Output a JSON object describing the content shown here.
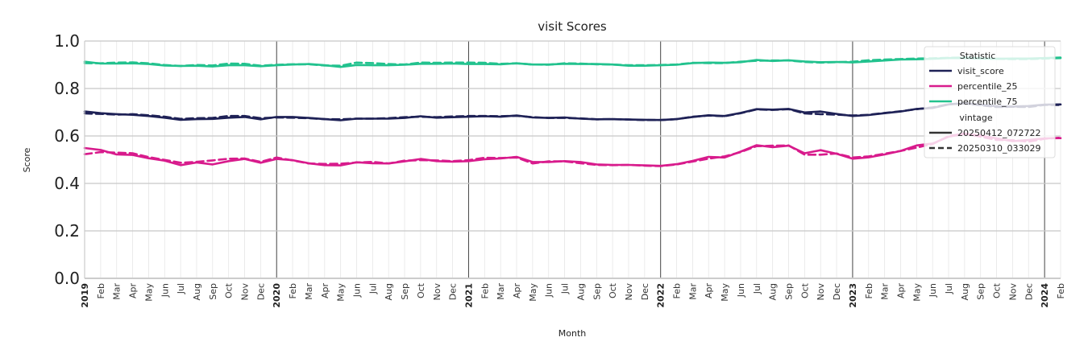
{
  "chart_data": {
    "type": "line",
    "title": "visit Scores",
    "xlabel": "Month",
    "ylabel": "Score",
    "ylim": [
      0,
      1
    ],
    "yticks": [
      "0.0",
      "0.2",
      "0.4",
      "0.6",
      "0.8",
      "1.0"
    ],
    "x_start": "2019-01",
    "x_end": "2024-02",
    "year_labels": [
      "2019",
      "2020",
      "2021",
      "2022",
      "2023",
      "2024"
    ],
    "month_labels": [
      "Feb",
      "Mar",
      "Apr",
      "May",
      "Jun",
      "Jul",
      "Aug",
      "Sep",
      "Oct",
      "Nov",
      "Dec"
    ],
    "grid": true,
    "legend": {
      "placement": "top-right",
      "statistic_title": "Statistic",
      "vintage_title": "vintage",
      "statistics": [
        "visit_score",
        "percentile_25",
        "percentile_75"
      ],
      "vintages": [
        "20250412_072722",
        "20250310_033029"
      ]
    },
    "colors": {
      "visit_score": "#1e2156",
      "percentile_25": "#d81b8c",
      "percentile_75": "#22c28e",
      "vintage_line": "#333333"
    },
    "x": [
      "2019-01",
      "2019-02",
      "2019-03",
      "2019-04",
      "2019-05",
      "2019-06",
      "2019-07",
      "2019-08",
      "2019-09",
      "2019-10",
      "2019-11",
      "2019-12",
      "2020-01",
      "2020-02",
      "2020-03",
      "2020-04",
      "2020-05",
      "2020-06",
      "2020-07",
      "2020-08",
      "2020-09",
      "2020-10",
      "2020-11",
      "2020-12",
      "2021-01",
      "2021-02",
      "2021-03",
      "2021-04",
      "2021-05",
      "2021-06",
      "2021-07",
      "2021-08",
      "2021-09",
      "2021-10",
      "2021-11",
      "2021-12",
      "2022-01",
      "2022-02",
      "2022-03",
      "2022-04",
      "2022-05",
      "2022-06",
      "2022-07",
      "2022-08",
      "2022-09",
      "2022-10",
      "2022-11",
      "2022-12",
      "2023-01",
      "2023-02",
      "2023-03",
      "2023-04",
      "2023-05",
      "2023-06",
      "2023-07",
      "2023-08",
      "2023-09",
      "2023-10",
      "2023-11",
      "2023-12",
      "2024-01",
      "2024-02"
    ],
    "series": [
      {
        "name": "visit_score",
        "vintage": "20250412_072722",
        "values": [
          0.703,
          0.696,
          0.692,
          0.689,
          0.684,
          0.677,
          0.668,
          0.671,
          0.672,
          0.677,
          0.68,
          0.67,
          0.68,
          0.68,
          0.676,
          0.671,
          0.666,
          0.673,
          0.673,
          0.673,
          0.676,
          0.683,
          0.677,
          0.679,
          0.681,
          0.683,
          0.681,
          0.686,
          0.678,
          0.676,
          0.678,
          0.673,
          0.67,
          0.671,
          0.669,
          0.668,
          0.667,
          0.671,
          0.68,
          0.687,
          0.684,
          0.697,
          0.713,
          0.711,
          0.714,
          0.699,
          0.703,
          0.693,
          0.684,
          0.688,
          0.696,
          0.703,
          0.714,
          0.718,
          0.733,
          0.738,
          0.732,
          0.725,
          0.724,
          0.726,
          0.732,
          0.733
        ]
      },
      {
        "name": "visit_score",
        "vintage": "20250310_033029",
        "values": [
          0.695,
          0.693,
          0.69,
          0.692,
          0.687,
          0.681,
          0.672,
          0.675,
          0.676,
          0.684,
          0.684,
          0.675,
          0.678,
          0.677,
          0.675,
          0.671,
          0.67,
          0.673,
          0.673,
          0.675,
          0.679,
          0.681,
          0.679,
          0.682,
          0.684,
          0.684,
          0.683,
          0.685,
          0.679,
          0.676,
          0.676,
          0.674,
          0.67,
          0.671,
          0.669,
          0.667,
          0.667,
          0.671,
          0.681,
          0.686,
          0.683,
          0.696,
          0.712,
          0.71,
          0.713,
          0.695,
          0.692,
          0.69,
          0.686,
          0.689,
          0.697,
          0.704,
          0.713,
          0.72,
          0.734,
          0.737,
          0.73,
          0.722,
          0.723,
          0.722,
          0.731,
          0.731
        ]
      },
      {
        "name": "percentile_25",
        "vintage": "20250412_072722",
        "values": [
          0.549,
          0.541,
          0.522,
          0.52,
          0.506,
          0.496,
          0.477,
          0.488,
          0.48,
          0.494,
          0.503,
          0.487,
          0.503,
          0.498,
          0.485,
          0.477,
          0.476,
          0.489,
          0.485,
          0.484,
          0.493,
          0.503,
          0.494,
          0.492,
          0.494,
          0.502,
          0.505,
          0.512,
          0.49,
          0.49,
          0.494,
          0.49,
          0.48,
          0.478,
          0.478,
          0.476,
          0.474,
          0.481,
          0.495,
          0.512,
          0.509,
          0.534,
          0.561,
          0.553,
          0.559,
          0.527,
          0.54,
          0.525,
          0.504,
          0.51,
          0.522,
          0.537,
          0.56,
          0.568,
          0.597,
          0.608,
          0.602,
          0.59,
          0.578,
          0.583,
          0.59,
          0.591
        ]
      },
      {
        "name": "percentile_25",
        "vintage": "20250310_033029",
        "values": [
          0.523,
          0.532,
          0.53,
          0.527,
          0.511,
          0.499,
          0.487,
          0.491,
          0.497,
          0.504,
          0.505,
          0.491,
          0.509,
          0.497,
          0.484,
          0.482,
          0.483,
          0.488,
          0.491,
          0.484,
          0.496,
          0.498,
          0.497,
          0.494,
          0.498,
          0.508,
          0.507,
          0.509,
          0.484,
          0.493,
          0.493,
          0.485,
          0.478,
          0.477,
          0.478,
          0.475,
          0.473,
          0.48,
          0.492,
          0.504,
          0.514,
          0.532,
          0.557,
          0.559,
          0.56,
          0.521,
          0.521,
          0.526,
          0.509,
          0.514,
          0.525,
          0.537,
          0.551,
          0.566,
          0.599,
          0.611,
          0.597,
          0.583,
          0.582,
          0.576,
          0.588,
          0.593
        ]
      },
      {
        "name": "percentile_75",
        "vintage": "20250412_072722",
        "values": [
          0.913,
          0.905,
          0.905,
          0.906,
          0.903,
          0.897,
          0.895,
          0.896,
          0.893,
          0.898,
          0.898,
          0.894,
          0.898,
          0.901,
          0.903,
          0.898,
          0.891,
          0.899,
          0.898,
          0.898,
          0.9,
          0.904,
          0.904,
          0.905,
          0.903,
          0.903,
          0.902,
          0.906,
          0.901,
          0.901,
          0.904,
          0.903,
          0.903,
          0.901,
          0.896,
          0.896,
          0.898,
          0.9,
          0.907,
          0.909,
          0.908,
          0.911,
          0.92,
          0.916,
          0.919,
          0.914,
          0.911,
          0.912,
          0.91,
          0.914,
          0.918,
          0.922,
          0.923,
          0.925,
          0.928,
          0.928,
          0.926,
          0.925,
          0.926,
          0.926,
          0.928,
          0.93
        ]
      },
      {
        "name": "percentile_75",
        "vintage": "20250310_033029",
        "values": [
          0.907,
          0.906,
          0.909,
          0.91,
          0.906,
          0.899,
          0.895,
          0.899,
          0.897,
          0.905,
          0.904,
          0.896,
          0.9,
          0.902,
          0.902,
          0.897,
          0.896,
          0.909,
          0.907,
          0.903,
          0.901,
          0.909,
          0.908,
          0.909,
          0.909,
          0.908,
          0.904,
          0.906,
          0.901,
          0.9,
          0.906,
          0.905,
          0.902,
          0.901,
          0.898,
          0.898,
          0.899,
          0.901,
          0.908,
          0.907,
          0.907,
          0.913,
          0.917,
          0.918,
          0.918,
          0.912,
          0.909,
          0.911,
          0.913,
          0.919,
          0.922,
          0.924,
          0.926,
          0.927,
          0.929,
          0.93,
          0.928,
          0.925,
          0.924,
          0.924,
          0.926,
          0.928
        ]
      }
    ]
  }
}
